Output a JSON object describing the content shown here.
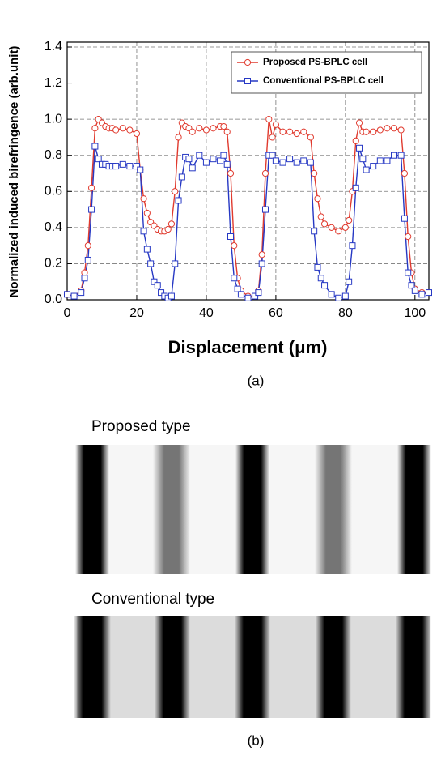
{
  "chart_data": {
    "type": "line",
    "y_label": "Normalized induced birefringence (arb.unit)",
    "x_label": "Displacement (μm)",
    "x": [
      0,
      2,
      4,
      5,
      6,
      7,
      8,
      9,
      10,
      11,
      12,
      13,
      14,
      16,
      18,
      20,
      21,
      22,
      23,
      24,
      25,
      26,
      27,
      28,
      29,
      30,
      31,
      32,
      33,
      34,
      35,
      36,
      38,
      40,
      42,
      44,
      45,
      46,
      47,
      48,
      49,
      50,
      52,
      54,
      55,
      56,
      57,
      58,
      59,
      60,
      62,
      64,
      66,
      68,
      70,
      71,
      72,
      73,
      74,
      76,
      78,
      80,
      81,
      82,
      83,
      84,
      85,
      86,
      88,
      90,
      92,
      94,
      96,
      97,
      98,
      99,
      100,
      102,
      104
    ],
    "series": [
      {
        "name": "Proposed PS-BPLC cell",
        "color": "#e03a2e",
        "marker": "circle",
        "values": [
          0.03,
          0.02,
          0.05,
          0.15,
          0.3,
          0.62,
          0.95,
          1.0,
          0.98,
          0.96,
          0.95,
          0.95,
          0.94,
          0.95,
          0.94,
          0.92,
          0.72,
          0.56,
          0.48,
          0.43,
          0.41,
          0.39,
          0.38,
          0.38,
          0.39,
          0.42,
          0.6,
          0.9,
          0.98,
          0.96,
          0.95,
          0.93,
          0.95,
          0.94,
          0.95,
          0.96,
          0.96,
          0.93,
          0.7,
          0.3,
          0.12,
          0.05,
          0.02,
          0.02,
          0.05,
          0.25,
          0.7,
          1.0,
          0.9,
          0.97,
          0.93,
          0.93,
          0.92,
          0.93,
          0.9,
          0.7,
          0.56,
          0.46,
          0.42,
          0.4,
          0.38,
          0.4,
          0.44,
          0.6,
          0.88,
          0.98,
          0.93,
          0.93,
          0.93,
          0.94,
          0.95,
          0.95,
          0.94,
          0.7,
          0.35,
          0.15,
          0.06,
          0.04,
          0.04
        ]
      },
      {
        "name": "Conventional PS-BPLC cell",
        "color": "#2638c4",
        "marker": "square",
        "values": [
          0.03,
          0.02,
          0.04,
          0.12,
          0.22,
          0.5,
          0.85,
          0.78,
          0.75,
          0.75,
          0.74,
          0.74,
          0.74,
          0.75,
          0.74,
          0.74,
          0.72,
          0.38,
          0.28,
          0.2,
          0.1,
          0.08,
          0.04,
          0.02,
          0.01,
          0.02,
          0.2,
          0.55,
          0.68,
          0.79,
          0.78,
          0.73,
          0.8,
          0.76,
          0.78,
          0.77,
          0.8,
          0.75,
          0.35,
          0.12,
          0.06,
          0.03,
          0.01,
          0.02,
          0.04,
          0.2,
          0.5,
          0.8,
          0.8,
          0.77,
          0.76,
          0.78,
          0.76,
          0.77,
          0.76,
          0.38,
          0.18,
          0.12,
          0.08,
          0.03,
          0.01,
          0.02,
          0.1,
          0.3,
          0.62,
          0.84,
          0.78,
          0.72,
          0.74,
          0.77,
          0.77,
          0.8,
          0.8,
          0.45,
          0.15,
          0.08,
          0.05,
          0.03,
          0.04
        ]
      }
    ],
    "xlim": [
      0,
      104
    ],
    "xticks": [
      0,
      20,
      40,
      60,
      80,
      100
    ],
    "ylim": [
      0,
      1.4
    ],
    "yticks": [
      {
        "value": 0,
        "label": "0.0"
      },
      0.2,
      0.4,
      0.6,
      0.8,
      {
        "value": 1,
        "label": "1.0"
      },
      1.2,
      1.4
    ],
    "grid": true,
    "legend": "top-right"
  },
  "captions": [
    "(a)",
    "(b)"
  ],
  "panel_b": {
    "labels": [
      "Proposed  type",
      "Conventional  type"
    ]
  }
}
